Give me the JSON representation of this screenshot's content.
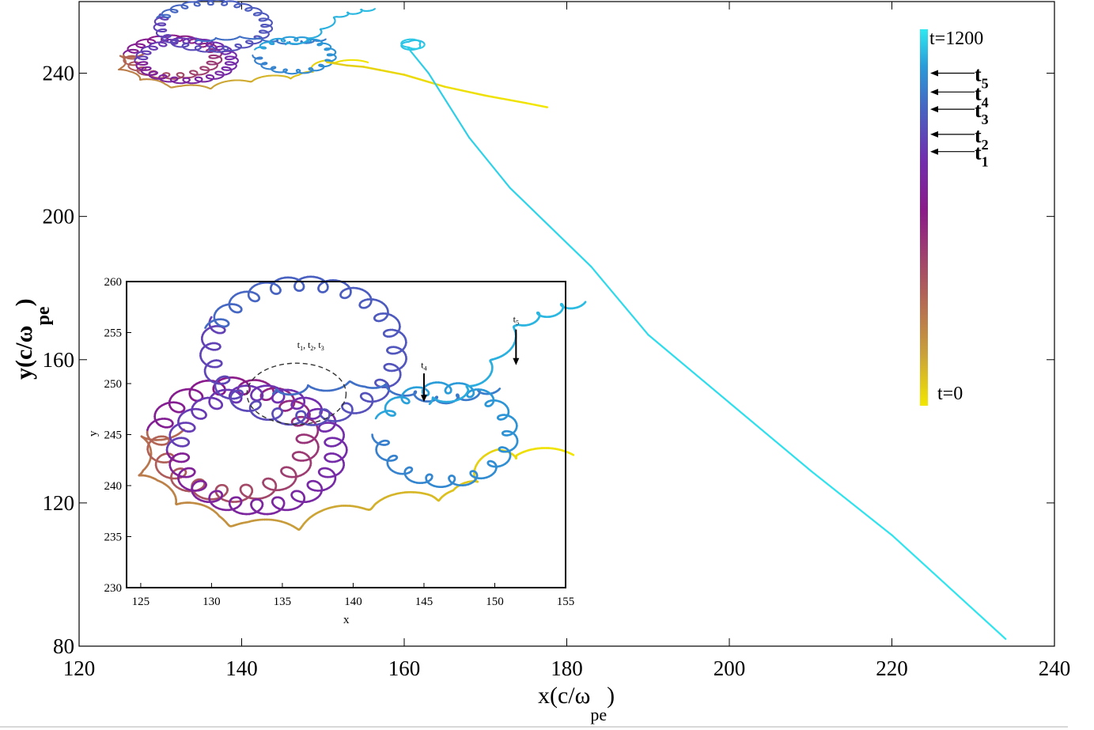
{
  "chart_data": [
    {
      "type": "line",
      "xlabel": "x(c/ω",
      "xlabel_sub": "pe",
      "xlabel_close": ")",
      "ylabel": "y(c/ω",
      "ylabel_sub": "pe",
      "ylabel_close": ")",
      "xlim": [
        120,
        240
      ],
      "ylim": [
        80,
        260
      ],
      "x_ticks": [
        "120",
        "140",
        "160",
        "180",
        "200",
        "220",
        "240"
      ],
      "y_ticks": [
        "80",
        "120",
        "160",
        "200",
        "240"
      ],
      "grid": false,
      "colormap": [
        "#f2e600",
        "#c9a03a",
        "#b06058",
        "#8a1a8a",
        "#7030b0",
        "#4a60c0",
        "#2a9ad8",
        "#2ee8f0"
      ],
      "colorbar": {
        "top_label": "t=1200",
        "bottom_label": "t=0",
        "markers": [
          {
            "label": "t",
            "sub": "5",
            "t": 1060
          },
          {
            "label": "t",
            "sub": "4",
            "t": 1000
          },
          {
            "label": "t",
            "sub": "3",
            "t": 945
          },
          {
            "label": "t",
            "sub": "2",
            "t": 865
          },
          {
            "label": "t",
            "sub": "1",
            "t": 810
          }
        ]
      },
      "series": [
        {
          "x": [
            177.6,
            175,
            170,
            165,
            160,
            157,
            155,
            153,
            150.5
          ],
          "y": [
            230.5,
            231.5,
            233.5,
            236,
            239.5,
            241,
            242,
            242.4,
            243.2
          ],
          "t_range": [
            0,
            180
          ]
        },
        {
          "x": [
            160.5,
            163,
            168,
            173,
            178,
            183,
            190,
            200,
            210,
            220,
            234
          ],
          "y": [
            247,
            240,
            222,
            208,
            197,
            186,
            167,
            148,
            129,
            111,
            82
          ],
          "t_range": [
            1100,
            1200
          ]
        }
      ]
    },
    {
      "type": "line",
      "title": "",
      "xlabel": "x",
      "ylabel": "y",
      "xlim": [
        124,
        155
      ],
      "ylim": [
        230,
        260
      ],
      "x_ticks": [
        "125",
        "130",
        "135",
        "140",
        "145",
        "150",
        "155"
      ],
      "y_ticks": [
        "230",
        "235",
        "240",
        "245",
        "250",
        "255",
        "260"
      ],
      "grid": false,
      "annotations": [
        {
          "text": "t",
          "subs": [
            "1",
            "2",
            "3"
          ],
          "x": 137,
          "y": 253.5
        },
        {
          "text": "t",
          "subs": [
            "4"
          ],
          "x": 145,
          "y": 251.5
        },
        {
          "text": "t",
          "subs": [
            "5"
          ],
          "x": 151.5,
          "y": 256
        }
      ],
      "highlight_ellipse": {
        "cx": 136,
        "cy": 249,
        "rx": 3.5,
        "ry": 3
      }
    }
  ]
}
